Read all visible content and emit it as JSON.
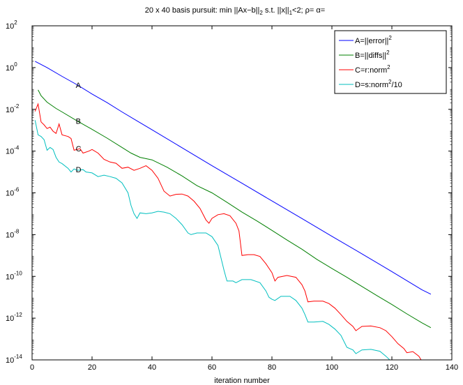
{
  "chart_data": {
    "type": "line",
    "title_parts": {
      "t1": "20 x 40 basis pursuit: min ||Ax−b||",
      "t2": "2",
      "t3": " s.t. ||x||",
      "t4": "1",
      "t5": "<2; ρ= α="
    },
    "xlabel": "iteration number",
    "ylabel": "",
    "xlim": [
      0,
      140
    ],
    "ylim_log10": [
      -14,
      2
    ],
    "yscale": "log",
    "grid": false,
    "legend_position": "top-right",
    "x_ticks": [
      "0",
      "20",
      "40",
      "60",
      "80",
      "100",
      "120",
      "140"
    ],
    "y_ticks": [
      {
        "base": "10",
        "exp": "2"
      },
      {
        "base": "10",
        "exp": "0"
      },
      {
        "base": "10",
        "exp": "-2"
      },
      {
        "base": "10",
        "exp": "-4"
      },
      {
        "base": "10",
        "exp": "-6"
      },
      {
        "base": "10",
        "exp": "-8"
      },
      {
        "base": "10",
        "exp": "-10"
      },
      {
        "base": "10",
        "exp": "-12"
      },
      {
        "base": "10",
        "exp": "-14"
      }
    ],
    "legend": [
      {
        "main": "A=||error||",
        "sup": "2",
        "tail": ""
      },
      {
        "main": "B=||diffs||",
        "sup": "2",
        "tail": ""
      },
      {
        "main": "C=r:norm",
        "sup": "2",
        "tail": ""
      },
      {
        "main": "D=s:norm",
        "sup": "2",
        "tail": "/10"
      }
    ],
    "series": [
      {
        "name": "A",
        "color": "#0000ff",
        "label_x": 15.5,
        "points": [
          [
            1,
            2.0
          ],
          [
            5,
            1.0
          ],
          [
            10,
            0.38
          ],
          [
            15,
            0.15
          ],
          [
            20,
            0.054
          ],
          [
            25,
            0.021
          ],
          [
            30,
            0.0075
          ],
          [
            35,
            0.0028
          ],
          [
            40,
            0.00105
          ],
          [
            50,
            0.000145
          ],
          [
            60,
            2e-05
          ],
          [
            70,
            2.9e-06
          ],
          [
            80,
            4.1e-07
          ],
          [
            90,
            5.9e-08
          ],
          [
            100,
            8.3e-09
          ],
          [
            110,
            1.2e-09
          ],
          [
            120,
            1.7e-10
          ],
          [
            130,
            2.3e-11
          ],
          [
            133,
            1.4e-11
          ]
        ]
      },
      {
        "name": "B",
        "color": "#007f00",
        "label_x": 15.5,
        "points": [
          [
            2,
            0.085
          ],
          [
            3,
            0.045
          ],
          [
            5,
            0.022
          ],
          [
            8,
            0.011
          ],
          [
            10,
            0.0075
          ],
          [
            15,
            0.0028
          ],
          [
            20,
            0.0011
          ],
          [
            25,
            0.00042
          ],
          [
            30,
            0.00015
          ],
          [
            33,
            8e-05
          ],
          [
            36,
            5e-05
          ],
          [
            40,
            3.8e-05
          ],
          [
            45,
            1.7e-05
          ],
          [
            50,
            6.5e-06
          ],
          [
            55,
            2.2e-06
          ],
          [
            60,
            1e-06
          ],
          [
            65,
            3.5e-07
          ],
          [
            70,
            1.2e-07
          ],
          [
            75,
            4.5e-08
          ],
          [
            80,
            1.6e-08
          ],
          [
            85,
            5.5e-09
          ],
          [
            90,
            2e-09
          ],
          [
            95,
            6.5e-10
          ],
          [
            100,
            2.4e-10
          ],
          [
            105,
            9e-11
          ],
          [
            110,
            3.3e-11
          ],
          [
            115,
            1.2e-11
          ],
          [
            120,
            4.5e-12
          ],
          [
            125,
            1.6e-12
          ],
          [
            130,
            6e-13
          ],
          [
            133,
            3.5e-13
          ]
        ]
      },
      {
        "name": "C",
        "color": "#ff0000",
        "label_x": 15.5,
        "points": [
          [
            1,
            0.008
          ],
          [
            2,
            0.018
          ],
          [
            3,
            0.0025
          ],
          [
            4,
            0.0018
          ],
          [
            5,
            0.0012
          ],
          [
            6,
            0.0014
          ],
          [
            7,
            0.0009
          ],
          [
            8,
            0.0007
          ],
          [
            9,
            0.002
          ],
          [
            10,
            0.0006
          ],
          [
            12,
            0.0005
          ],
          [
            13,
            0.0004
          ],
          [
            14,
            0.00011
          ],
          [
            16,
            0.00013
          ],
          [
            17,
            8e-05
          ],
          [
            19,
            0.0001
          ],
          [
            20,
            0.00012
          ],
          [
            22,
            8e-05
          ],
          [
            24,
            4e-05
          ],
          [
            26,
            3e-05
          ],
          [
            28,
            2.6e-05
          ],
          [
            30,
            1.5e-05
          ],
          [
            32,
            1.7e-05
          ],
          [
            34,
            1.2e-05
          ],
          [
            36,
            1.5e-05
          ],
          [
            38,
            2e-05
          ],
          [
            40,
            1.2e-05
          ],
          [
            42,
            5e-06
          ],
          [
            44,
            1.2e-06
          ],
          [
            46,
            7e-07
          ],
          [
            48,
            8.5e-07
          ],
          [
            50,
            8.8e-07
          ],
          [
            52,
            7e-07
          ],
          [
            54,
            4e-07
          ],
          [
            56,
            1.8e-07
          ],
          [
            58,
            5e-08
          ],
          [
            59,
            3.5e-08
          ],
          [
            60,
            6e-08
          ],
          [
            62,
            9e-08
          ],
          [
            64,
            1e-07
          ],
          [
            66,
            8e-08
          ],
          [
            68,
            3.5e-08
          ],
          [
            69,
            1.5e-08
          ],
          [
            70,
            1e-09
          ],
          [
            72,
            1.1e-09
          ],
          [
            74,
            1.1e-09
          ],
          [
            76,
            9e-10
          ],
          [
            78,
            4e-10
          ],
          [
            80,
            1.5e-10
          ],
          [
            81,
            6e-11
          ],
          [
            82,
            9e-11
          ],
          [
            85,
            1.1e-10
          ],
          [
            88,
            9e-11
          ],
          [
            90,
            4e-11
          ],
          [
            91,
            2e-11
          ],
          [
            92,
            6e-12
          ],
          [
            94,
            6.5e-12
          ],
          [
            97,
            6.5e-12
          ],
          [
            99,
            5e-12
          ],
          [
            101,
            3e-12
          ],
          [
            103,
            1.5e-12
          ],
          [
            105,
            7e-13
          ],
          [
            107,
            4e-13
          ],
          [
            108,
            2.5e-13
          ],
          [
            110,
            4e-13
          ],
          [
            113,
            4.2e-13
          ],
          [
            116,
            3.5e-13
          ],
          [
            118,
            2.5e-13
          ],
          [
            120,
            1.3e-13
          ],
          [
            122,
            6e-14
          ],
          [
            124,
            3.5e-14
          ],
          [
            125,
            2.2e-14
          ],
          [
            127,
            2.5e-14
          ],
          [
            129,
            1.5e-14
          ],
          [
            131,
            5e-15
          ],
          [
            133,
            1e-15
          ]
        ]
      },
      {
        "name": "D",
        "color": "#00bfbf",
        "label_x": 15.5,
        "points": [
          [
            1,
            0.003
          ],
          [
            2,
            0.0006
          ],
          [
            3,
            0.0005
          ],
          [
            4,
            0.00035
          ],
          [
            5,
            0.00011
          ],
          [
            6,
            0.00015
          ],
          [
            7,
            0.00012
          ],
          [
            8,
            5e-05
          ],
          [
            9,
            3e-05
          ],
          [
            10,
            2.5e-05
          ],
          [
            12,
            1.5e-05
          ],
          [
            13,
            1e-05
          ],
          [
            14,
            1.4e-05
          ],
          [
            15,
            1.2e-05
          ],
          [
            17,
            1.3e-05
          ],
          [
            18,
            1e-05
          ],
          [
            20,
            9e-06
          ],
          [
            22,
            6e-06
          ],
          [
            24,
            7e-06
          ],
          [
            26,
            6e-06
          ],
          [
            28,
            5e-06
          ],
          [
            30,
            3e-06
          ],
          [
            32,
            1e-06
          ],
          [
            33,
            2.5e-07
          ],
          [
            34,
            1e-07
          ],
          [
            35,
            6e-08
          ],
          [
            36,
            1.1e-07
          ],
          [
            38,
            1e-07
          ],
          [
            40,
            1.1e-07
          ],
          [
            42,
            1.3e-07
          ],
          [
            44,
            1.2e-07
          ],
          [
            46,
            1e-07
          ],
          [
            48,
            6e-08
          ],
          [
            50,
            3e-08
          ],
          [
            52,
            1.2e-08
          ],
          [
            53,
            1e-08
          ],
          [
            55,
            1.2e-08
          ],
          [
            58,
            1.2e-08
          ],
          [
            60,
            8e-09
          ],
          [
            62,
            3e-09
          ],
          [
            64,
            2e-10
          ],
          [
            65,
            6e-11
          ],
          [
            67,
            6e-11
          ],
          [
            68,
            5e-11
          ],
          [
            70,
            7e-11
          ],
          [
            73,
            7e-11
          ],
          [
            76,
            5e-11
          ],
          [
            78,
            2e-11
          ],
          [
            79,
            1e-11
          ],
          [
            80,
            8e-12
          ],
          [
            81,
            7e-12
          ],
          [
            83,
            1.1e-11
          ],
          [
            86,
            1.1e-11
          ],
          [
            88,
            7e-12
          ],
          [
            90,
            3e-12
          ],
          [
            91,
            1.5e-12
          ],
          [
            92,
            6.5e-13
          ],
          [
            94,
            6.5e-13
          ],
          [
            97,
            7e-13
          ],
          [
            99,
            5e-13
          ],
          [
            101,
            3e-13
          ],
          [
            103,
            1.5e-13
          ],
          [
            105,
            4e-14
          ],
          [
            107,
            3e-14
          ],
          [
            108,
            2e-14
          ],
          [
            110,
            3e-14
          ],
          [
            113,
            3.2e-14
          ],
          [
            116,
            2.6e-14
          ],
          [
            118,
            1.5e-14
          ],
          [
            120,
            8e-15
          ],
          [
            122,
            5e-15
          ],
          [
            124,
            3.5e-15
          ],
          [
            125,
            3e-15
          ],
          [
            127,
            2.5e-15
          ],
          [
            130,
            1.5e-15
          ],
          [
            133,
            8e-16
          ]
        ]
      }
    ]
  }
}
